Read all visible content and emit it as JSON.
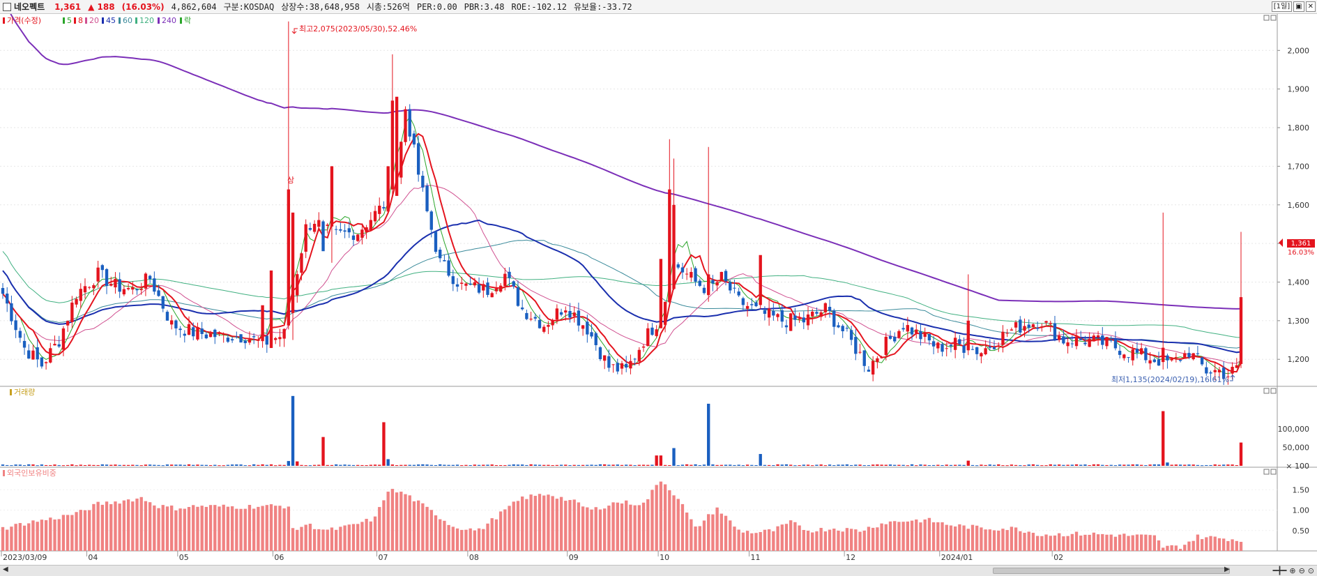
{
  "header": {
    "name": "네오펙트",
    "price": "1,361",
    "change": "▲ 188",
    "change_pct": "(16.03%)",
    "volume": "4,862,604",
    "market": "구분:KOSDAQ",
    "shares": "상장수:38,648,958",
    "mcap": "시총:526억",
    "per": "PER:0.00",
    "pbr": "PBR:3.48",
    "roe": "ROE:-102.12",
    "float": "유보율:-33.72",
    "period_btn": "[1일]",
    "win_btn1": "▣",
    "win_btn2": "✕"
  },
  "price_legend": {
    "main": "가격(수정)",
    "ma5": "5",
    "ma8": "8",
    "ma20": "20",
    "ma45": "45",
    "ma60": "60",
    "ma120": "120",
    "ma240": "240",
    "fall": "락"
  },
  "annotations": {
    "high": "최고2,075(2023/05/30),52.46%",
    "low": "최저1,135(2024/02/19),16.61%",
    "upper_limit": "상"
  },
  "last_price_tag": {
    "price": "1,361",
    "pct": "16.03%"
  },
  "volume_legend": "거래량",
  "foreign_legend": "외국인보유비중",
  "date_labels": [
    "2023/03/09",
    "04",
    "05",
    "06",
    "07",
    "08",
    "09",
    "10",
    "11",
    "12",
    "2024/01",
    "02"
  ],
  "colors": {
    "up": "#e4141e",
    "down": "#1a5fc0",
    "ma5": "#2aa52a",
    "ma8": "#e4141e",
    "ma20": "#d05090",
    "ma45": "#1a2fae",
    "ma60": "#3a8a9a",
    "ma120": "#40b080",
    "ma240": "#7b2fb8",
    "foreign": "#f08282"
  },
  "chart_data": [
    {
      "type": "candlestick",
      "title": "가격(수정)",
      "ylim": [
        1130,
        2080
      ],
      "yticks": [
        1200,
        1300,
        1400,
        1500,
        1600,
        1700,
        1800,
        1900,
        2000
      ],
      "ytick_labels": [
        "1,200",
        "1,300",
        "1,400",
        "1,500",
        "1,600",
        "1,700",
        "1,800",
        "1,900",
        "2,000"
      ],
      "high": {
        "value": 2075,
        "date": "2023/05/30"
      },
      "low": {
        "value": 1135,
        "date": "2024/02/19"
      },
      "last_close": 1361,
      "anchors": [
        [
          0,
          1370
        ],
        [
          5,
          1230
        ],
        [
          9,
          1185
        ],
        [
          13,
          1250
        ],
        [
          17,
          1370
        ],
        [
          22,
          1420
        ],
        [
          26,
          1390
        ],
        [
          30,
          1380
        ],
        [
          34,
          1410
        ],
        [
          39,
          1290
        ],
        [
          44,
          1270
        ],
        [
          50,
          1260
        ],
        [
          56,
          1260
        ],
        [
          60,
          1240
        ],
        [
          65,
          1265
        ],
        [
          70,
          1540
        ],
        [
          72,
          1560
        ],
        [
          76,
          1520
        ],
        [
          82,
          1530
        ],
        [
          88,
          1600
        ],
        [
          91,
          1670
        ],
        [
          93,
          1850
        ],
        [
          96,
          1680
        ],
        [
          98,
          1580
        ],
        [
          101,
          1450
        ],
        [
          106,
          1390
        ],
        [
          112,
          1380
        ],
        [
          116,
          1420
        ],
        [
          120,
          1330
        ],
        [
          125,
          1290
        ],
        [
          130,
          1340
        ],
        [
          135,
          1280
        ],
        [
          140,
          1180
        ],
        [
          144,
          1170
        ],
        [
          148,
          1250
        ],
        [
          152,
          1310
        ],
        [
          155,
          1450
        ],
        [
          160,
          1400
        ],
        [
          163,
          1380
        ],
        [
          166,
          1410
        ],
        [
          170,
          1350
        ],
        [
          175,
          1320
        ],
        [
          180,
          1300
        ],
        [
          185,
          1300
        ],
        [
          190,
          1330
        ],
        [
          195,
          1260
        ],
        [
          200,
          1180
        ],
        [
          204,
          1240
        ],
        [
          208,
          1290
        ],
        [
          212,
          1260
        ],
        [
          216,
          1230
        ],
        [
          220,
          1240
        ],
        [
          226,
          1220
        ],
        [
          232,
          1270
        ],
        [
          236,
          1290
        ],
        [
          240,
          1300
        ],
        [
          245,
          1250
        ],
        [
          250,
          1250
        ],
        [
          255,
          1240
        ],
        [
          260,
          1220
        ],
        [
          266,
          1200
        ],
        [
          270,
          1190
        ],
        [
          274,
          1220
        ],
        [
          278,
          1170
        ],
        [
          281,
          1170
        ],
        [
          283,
          1160
        ],
        [
          285,
          1175
        ],
        [
          286,
          1361
        ]
      ],
      "spikes": [
        [
          60,
          1340,
          1230
        ],
        [
          62,
          1430,
          1270
        ],
        [
          66,
          1640,
          2075
        ],
        [
          67,
          1580,
          1250
        ],
        [
          74,
          1480,
          1540
        ],
        [
          76,
          1700,
          1450
        ],
        [
          89,
          1700,
          1650
        ],
        [
          90,
          1870,
          1990
        ],
        [
          91,
          1880,
          1700
        ],
        [
          152,
          1460,
          1350
        ],
        [
          154,
          1640,
          1770
        ],
        [
          155,
          1600,
          1720
        ],
        [
          163,
          1420,
          1750
        ],
        [
          175,
          1470,
          1330
        ],
        [
          223,
          1300,
          1420
        ],
        [
          268,
          1230,
          1580
        ],
        [
          286,
          1361,
          1530
        ]
      ],
      "volume_spikes": [
        [
          66,
          13000,
          "down"
        ],
        [
          67,
          189000,
          "down"
        ],
        [
          68,
          12000,
          "up"
        ],
        [
          74,
          78000,
          "up"
        ],
        [
          88,
          118000,
          "up"
        ],
        [
          89,
          18000,
          "down"
        ],
        [
          151,
          28000,
          "up"
        ],
        [
          152,
          28000,
          "up"
        ],
        [
          155,
          48000,
          "down"
        ],
        [
          163,
          168000,
          "down"
        ],
        [
          175,
          32000,
          "down"
        ],
        [
          223,
          14000,
          "up"
        ],
        [
          268,
          148000,
          "up"
        ],
        [
          269,
          9000,
          "down"
        ],
        [
          286,
          63000,
          "up"
        ]
      ]
    },
    {
      "type": "bar",
      "title": "거래량",
      "ylim": [
        0,
        200000
      ],
      "yticks": [
        100000,
        50000,
        100
      ],
      "ytick_labels": [
        "100,000",
        "50,000",
        "× 100"
      ]
    },
    {
      "type": "bar",
      "title": "외국인보유비중",
      "ylim": [
        0,
        1.95
      ],
      "yticks": [
        1.5,
        1.0,
        0.5
      ],
      "ytick_labels": [
        "1.50",
        "1.00",
        "0.50"
      ],
      "anchors": [
        [
          0,
          0.55
        ],
        [
          6,
          0.7
        ],
        [
          12,
          0.8
        ],
        [
          18,
          0.95
        ],
        [
          22,
          1.15
        ],
        [
          26,
          1.2
        ],
        [
          32,
          1.3
        ],
        [
          36,
          1.1
        ],
        [
          40,
          1.05
        ],
        [
          45,
          1.1
        ],
        [
          55,
          1.08
        ],
        [
          60,
          1.1
        ],
        [
          66,
          1.1
        ],
        [
          67,
          0.5
        ],
        [
          70,
          0.65
        ],
        [
          75,
          0.5
        ],
        [
          80,
          0.6
        ],
        [
          86,
          0.8
        ],
        [
          89,
          1.5
        ],
        [
          93,
          1.4
        ],
        [
          100,
          0.9
        ],
        [
          104,
          0.6
        ],
        [
          110,
          0.5
        ],
        [
          116,
          1.0
        ],
        [
          120,
          1.3
        ],
        [
          126,
          1.4
        ],
        [
          132,
          1.2
        ],
        [
          136,
          1.0
        ],
        [
          142,
          1.2
        ],
        [
          148,
          1.15
        ],
        [
          152,
          1.75
        ],
        [
          156,
          1.3
        ],
        [
          160,
          0.55
        ],
        [
          165,
          1.05
        ],
        [
          170,
          0.5
        ],
        [
          174,
          0.45
        ],
        [
          178,
          0.5
        ],
        [
          182,
          0.7
        ],
        [
          186,
          0.5
        ],
        [
          192,
          0.55
        ],
        [
          198,
          0.5
        ],
        [
          204,
          0.7
        ],
        [
          210,
          0.75
        ],
        [
          214,
          0.75
        ],
        [
          218,
          0.65
        ],
        [
          222,
          0.6
        ],
        [
          228,
          0.55
        ],
        [
          234,
          0.55
        ],
        [
          240,
          0.4
        ],
        [
          250,
          0.42
        ],
        [
          260,
          0.38
        ],
        [
          266,
          0.35
        ],
        [
          268,
          0.1
        ],
        [
          272,
          0.1
        ],
        [
          276,
          0.35
        ],
        [
          283,
          0.3
        ],
        [
          286,
          0.25
        ]
      ]
    }
  ]
}
